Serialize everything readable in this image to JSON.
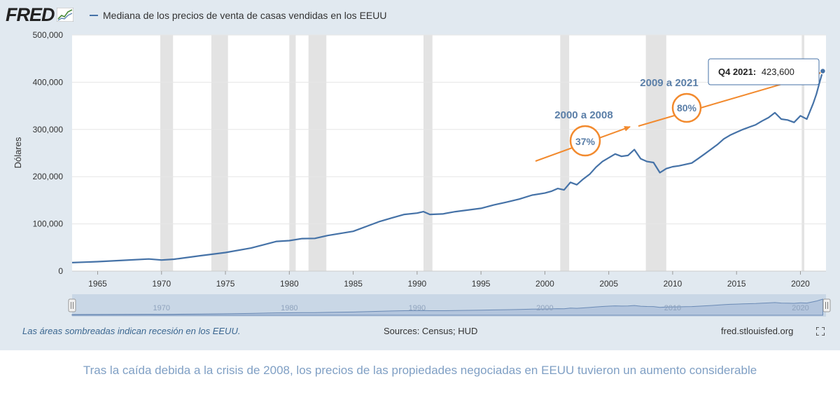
{
  "header": {
    "logo_text": "FRED",
    "legend_label": "Mediana de los precios de venta de casas vendidas en los EEUU"
  },
  "footer": {
    "recession_note": "Las áreas sombreadas indican recesión en los EEUU.",
    "sources": "Sources: Census; HUD",
    "site": "fred.stlouisfed.org"
  },
  "caption": "Tras la caída debida a la crisis de 2008, los precios de las propiedades negociadas en EEUU tuvieron un aumento considerable",
  "colors": {
    "series": "#4572a7",
    "accent": "#f28a2e",
    "recession": "#e3e3e3",
    "panel": "#e1e9f0"
  },
  "chart_data": {
    "type": "line",
    "title": "Mediana de los precios de venta de casas vendidas en los EEUU",
    "ylabel": "Dólares",
    "xlabel": "",
    "xlim": [
      1963,
      2022
    ],
    "ylim": [
      0,
      500000
    ],
    "y_ticks": [
      0,
      100000,
      200000,
      300000,
      400000,
      500000
    ],
    "y_tick_labels": [
      "0",
      "100,000",
      "200,000",
      "300,000",
      "400,000",
      "500,000"
    ],
    "x_ticks": [
      1965,
      1970,
      1975,
      1980,
      1985,
      1990,
      1995,
      2000,
      2005,
      2010,
      2015,
      2020
    ],
    "x_tick_labels": [
      "1965",
      "1970",
      "1975",
      "1980",
      "1985",
      "1990",
      "1995",
      "2000",
      "2005",
      "2010",
      "2015",
      "2020"
    ],
    "navigator_ticks": [
      1970,
      1980,
      1990,
      2000,
      2010,
      2020
    ],
    "navigator_tick_labels": [
      "1970",
      "1980",
      "1990",
      "2000",
      "2010",
      "2020"
    ],
    "recessions": [
      [
        1969.9,
        1970.9
      ],
      [
        1973.9,
        1975.2
      ],
      [
        1980.0,
        1980.5
      ],
      [
        1981.5,
        1982.9
      ],
      [
        1990.5,
        1991.2
      ],
      [
        2001.2,
        2001.9
      ],
      [
        2007.9,
        2009.5
      ],
      [
        2020.1,
        2020.3
      ]
    ],
    "series": [
      {
        "name": "Mediana de los precios de venta de casas vendidas en los EEUU",
        "x": [
          1963.0,
          1965.0,
          1967.0,
          1969.0,
          1970.0,
          1971.0,
          1973.0,
          1975.0,
          1977.0,
          1979.0,
          1980.0,
          1981.0,
          1982.0,
          1983.0,
          1985.0,
          1987.0,
          1988.0,
          1989.0,
          1990.0,
          1990.5,
          1991.0,
          1992.0,
          1993.0,
          1995.0,
          1996.0,
          1997.0,
          1998.0,
          1999.0,
          2000.0,
          2000.5,
          2001.0,
          2001.5,
          2002.0,
          2002.5,
          2003.0,
          2003.5,
          2004.0,
          2004.5,
          2005.0,
          2005.5,
          2006.0,
          2006.5,
          2007.0,
          2007.5,
          2008.0,
          2008.5,
          2009.0,
          2009.5,
          2010.0,
          2010.5,
          2011.0,
          2011.5,
          2012.0,
          2012.5,
          2013.0,
          2013.5,
          2014.0,
          2014.5,
          2015.0,
          2015.5,
          2016.0,
          2016.5,
          2017.0,
          2017.5,
          2018.0,
          2018.5,
          2019.0,
          2019.5,
          2020.0,
          2020.5,
          2021.0,
          2021.25,
          2021.5,
          2021.75
        ],
        "y": [
          18000,
          20000,
          22800,
          25600,
          23400,
          25200,
          32500,
          39300,
          48800,
          62900,
          64600,
          68900,
          69300,
          75300,
          84300,
          104500,
          112500,
          120000,
          122900,
          126000,
          120000,
          121000,
          126000,
          133000,
          140000,
          146000,
          152500,
          161000,
          165300,
          169000,
          175000,
          172000,
          188000,
          183000,
          195000,
          205000,
          220000,
          232000,
          240000,
          248000,
          243000,
          245000,
          257400,
          238000,
          232000,
          230000,
          208400,
          217000,
          221000,
          223000,
          226000,
          229000,
          238400,
          248000,
          258000,
          268000,
          280000,
          288000,
          294000,
          300000,
          305000,
          310000,
          318000,
          325000,
          335400,
          322000,
          320000,
          315000,
          329000,
          322000,
          355000,
          375000,
          400000,
          423600
        ]
      }
    ],
    "annotations": {
      "tooltip_period": "Q4 2021:",
      "tooltip_value": "423,600",
      "label_2000_2008": "2000 a 2008",
      "pct_2000_2008": "37%",
      "label_2009_2021": "2009 a 2021",
      "pct_2009_2021": "80%"
    }
  }
}
